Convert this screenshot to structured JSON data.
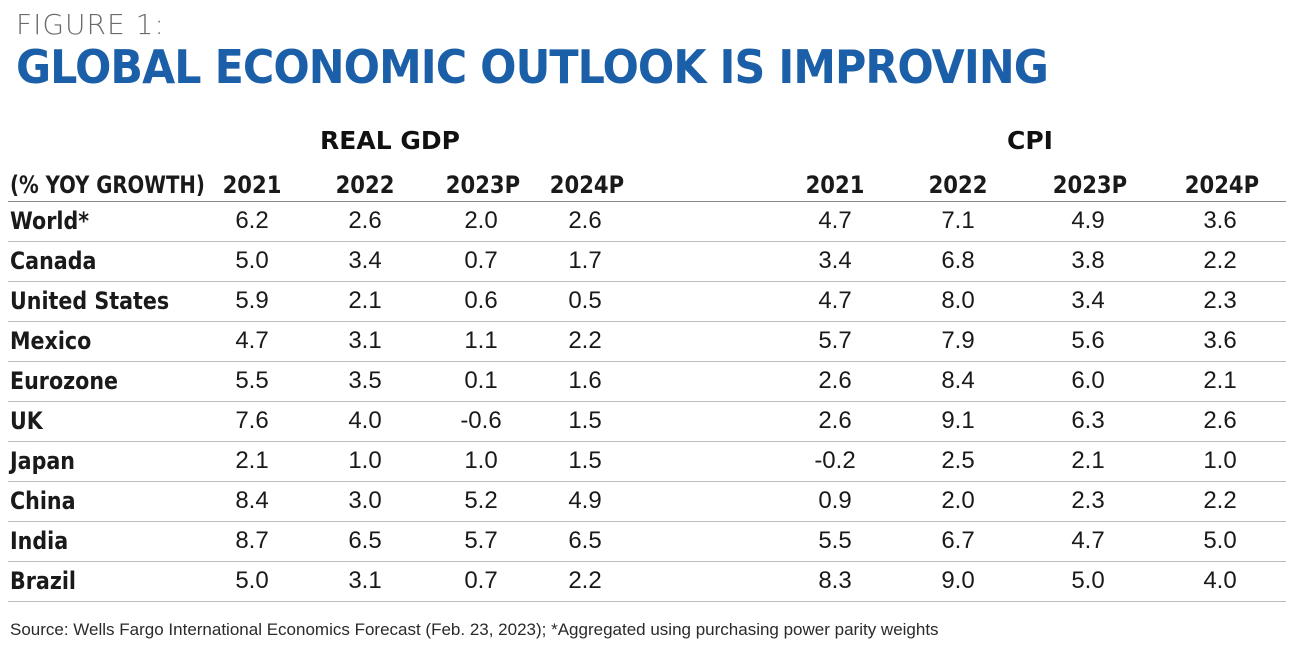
{
  "figure_label": "FIGURE 1:",
  "title": "GLOBAL ECONOMIC OUTLOOK IS IMPROVING",
  "groups": {
    "gdp": "REAL GDP",
    "cpi": "CPI"
  },
  "header": {
    "label": "(% YOY GROWTH)",
    "gdp_years": [
      "2021",
      "2022",
      "2023P",
      "2024P"
    ],
    "cpi_years": [
      "2021",
      "2022",
      "2023P",
      "2024P"
    ]
  },
  "rows": [
    {
      "name": "World*",
      "gdp": [
        "6.2",
        "2.6",
        "2.0",
        "2.6"
      ],
      "cpi": [
        "4.7",
        "7.1",
        "4.9",
        "3.6"
      ]
    },
    {
      "name": "Canada",
      "gdp": [
        "5.0",
        "3.4",
        "0.7",
        "1.7"
      ],
      "cpi": [
        "3.4",
        "6.8",
        "3.8",
        "2.2"
      ]
    },
    {
      "name": "United States",
      "gdp": [
        "5.9",
        "2.1",
        "0.6",
        "0.5"
      ],
      "cpi": [
        "4.7",
        "8.0",
        "3.4",
        "2.3"
      ]
    },
    {
      "name": "Mexico",
      "gdp": [
        "4.7",
        "3.1",
        "1.1",
        "2.2"
      ],
      "cpi": [
        "5.7",
        "7.9",
        "5.6",
        "3.6"
      ]
    },
    {
      "name": "Eurozone",
      "gdp": [
        "5.5",
        "3.5",
        "0.1",
        "1.6"
      ],
      "cpi": [
        "2.6",
        "8.4",
        "6.0",
        "2.1"
      ]
    },
    {
      "name": "UK",
      "gdp": [
        "7.6",
        "4.0",
        "-0.6",
        "1.5"
      ],
      "cpi": [
        "2.6",
        "9.1",
        "6.3",
        "2.6"
      ]
    },
    {
      "name": "Japan",
      "gdp": [
        "2.1",
        "1.0",
        "1.0",
        "1.5"
      ],
      "cpi": [
        "-0.2",
        "2.5",
        "2.1",
        "1.0"
      ]
    },
    {
      "name": "China",
      "gdp": [
        "8.4",
        "3.0",
        "5.2",
        "4.9"
      ],
      "cpi": [
        "0.9",
        "2.0",
        "2.3",
        "2.2"
      ]
    },
    {
      "name": "India",
      "gdp": [
        "8.7",
        "6.5",
        "5.7",
        "6.5"
      ],
      "cpi": [
        "5.5",
        "6.7",
        "4.7",
        "5.0"
      ]
    },
    {
      "name": "Brazil",
      "gdp": [
        "5.0",
        "3.1",
        "0.7",
        "2.2"
      ],
      "cpi": [
        "8.3",
        "9.0",
        "5.0",
        "4.0"
      ]
    }
  ],
  "source": "Source: Wells Fargo International Economics Forecast (Feb. 23, 2023); *Aggregated using purchasing power parity weights",
  "colors": {
    "title": "#1a5fa8",
    "label": "#6b6b6b"
  }
}
